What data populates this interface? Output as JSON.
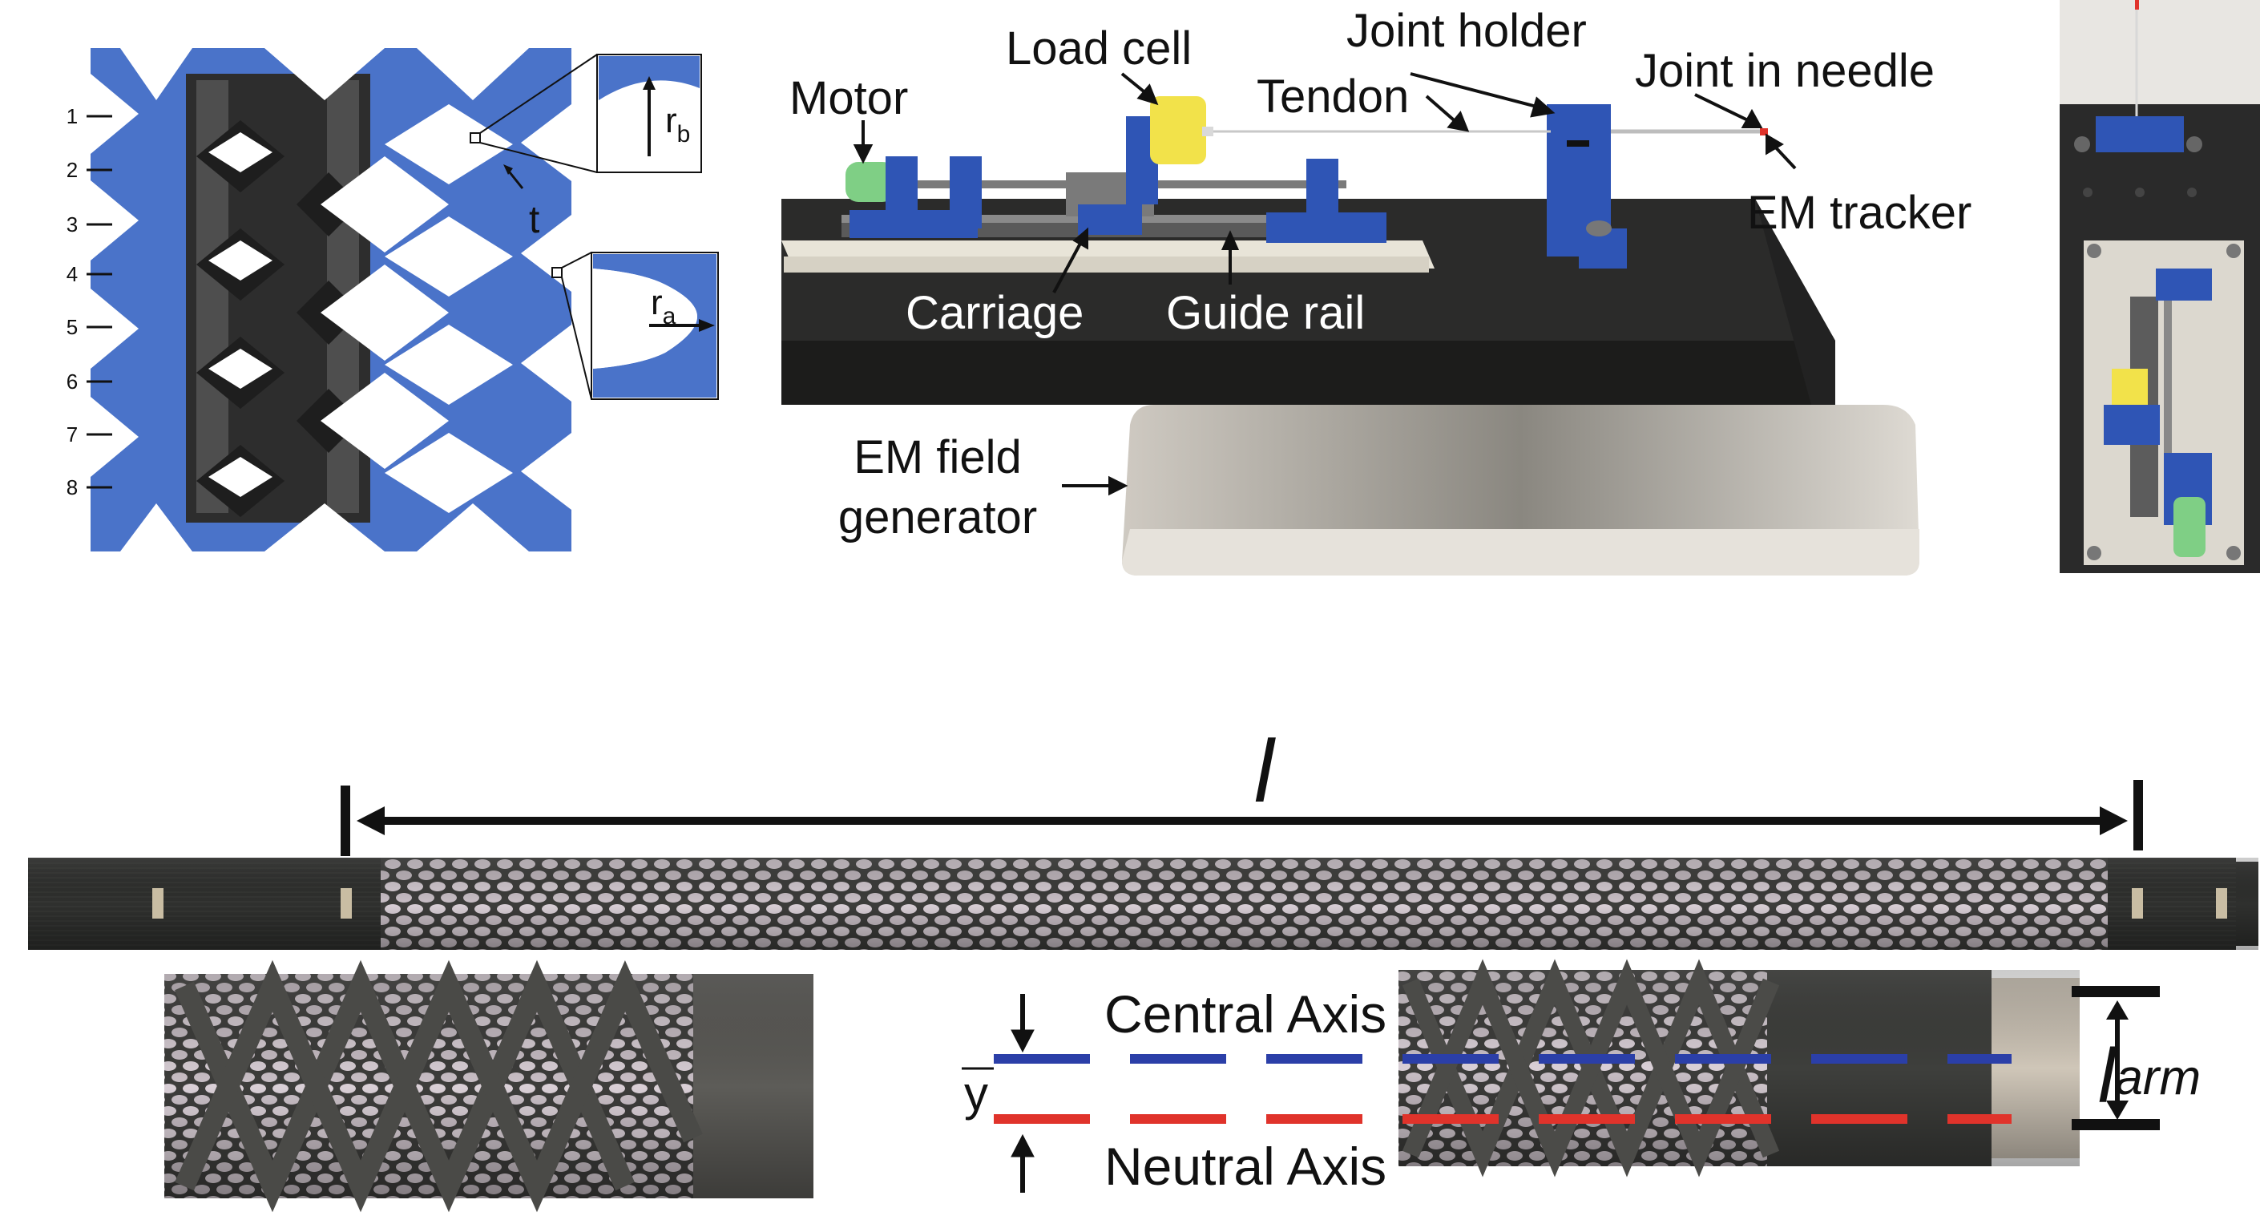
{
  "pattern_panel": {
    "row_numbers": [
      "1",
      "2",
      "3",
      "4",
      "5",
      "6",
      "7",
      "8"
    ],
    "labels": {
      "r_b": "r",
      "r_b_sub": "b",
      "r_a": "r",
      "r_a_sub": "a",
      "t": "t"
    }
  },
  "setup_panel": {
    "labels": {
      "motor": "Motor",
      "load_cell": "Load cell",
      "joint_holder": "Joint holder",
      "tendon": "Tendon",
      "joint_in_needle": "Joint in needle",
      "em_tracker": "EM tracker",
      "carriage": "Carriage",
      "guide_rail": "Guide rail",
      "em_field_line1": "EM field",
      "em_field_line2": "generator"
    }
  },
  "joint_panel": {
    "length_symbol": "l",
    "central_axis": "Central Axis",
    "neutral_axis": "Neutral Axis",
    "y_bar": "y",
    "l_arm": "l",
    "l_arm_sub": "arm"
  },
  "colors": {
    "lattice_blue": "#4a73c9",
    "central_axis": "#2b3fa8",
    "neutral_axis": "#e0332b",
    "table_black": "#2a2a2a",
    "generator_gray": "#d8d5ce",
    "load_cell_yellow": "#f2e24a",
    "motor_green": "#7fcf85"
  }
}
